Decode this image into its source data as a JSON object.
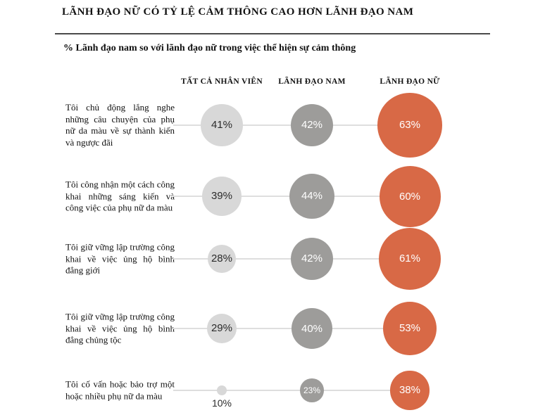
{
  "chart_data": {
    "type": "bubble",
    "title": "LÃNH ĐẠO NỮ CÓ TỶ LỆ CẢM THÔNG CAO HƠN LÃNH ĐẠO NAM",
    "subtitle": "% Lãnh đạo nam so với lãnh đạo nữ trong việc thể hiện sự cảm thông",
    "value_suffix": "%",
    "value_range": [
      0,
      100
    ],
    "legend_position": "top-column-headers",
    "grid": false,
    "categories": [
      "Tôi chủ động lắng nghe những câu chuyện của phụ nữ da màu về sự thành kiến và ngược đãi",
      "Tôi công nhận một cách công khai những sáng kiến và công việc của phụ nữ da màu",
      "Tôi giữ vững lập trường công khai về việc ủng hộ bình đẳng giới",
      "Tôi giữ vững lập trường công khai về việc ủng hộ bình đẳng chủng tộc",
      "Tôi cố vấn hoặc bảo trợ một hoặc nhiều phụ nữ da màu"
    ],
    "series": [
      {
        "key": "all-employees",
        "name": "TẤT CẢ NHÂN VIÊN",
        "values": [
          41,
          39,
          28,
          29,
          10
        ]
      },
      {
        "key": "male-leaders",
        "name": "LÃNH ĐẠO NAM",
        "values": [
          42,
          44,
          42,
          40,
          23
        ]
      },
      {
        "key": "female-leaders",
        "name": "LÃNH ĐẠO NỮ",
        "values": [
          63,
          60,
          61,
          53,
          38
        ]
      }
    ],
    "colors": {
      "series": [
        "#D8D8D8",
        "#9D9C9A",
        "#D86946"
      ],
      "value_text_dark": "#2B2B2B",
      "value_text_light": "#FFFFFF",
      "connector_line": "#DEDEDE",
      "divider": "#4A4A4A",
      "text": "#111111"
    }
  }
}
